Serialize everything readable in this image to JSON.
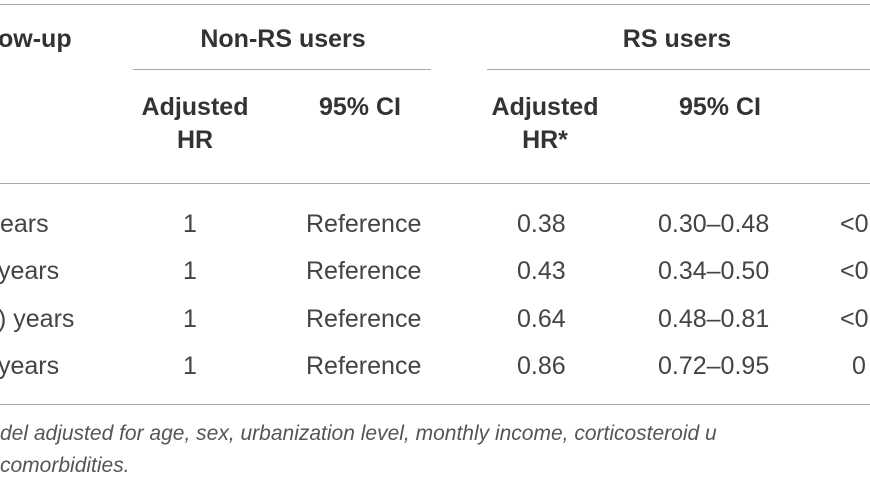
{
  "table": {
    "header_group": {
      "followup": "ow-up",
      "non_rs": "Non-RS users",
      "rs": "RS users"
    },
    "subheaders": {
      "non_rs_hr_line1": "Adjusted",
      "non_rs_hr_line2": "HR",
      "non_rs_ci": "95% CI",
      "rs_hr_line1": "Adjusted",
      "rs_hr_line2": "HR*",
      "rs_ci": "95% CI"
    },
    "rows": [
      {
        "followup": "ears",
        "non_rs_hr": "1",
        "non_rs_ci": "Reference",
        "rs_hr": "0.38",
        "rs_ci": "0.30–0.48",
        "p": "<0"
      },
      {
        "followup": "years",
        "non_rs_hr": "1",
        "non_rs_ci": "Reference",
        "rs_hr": "0.43",
        "rs_ci": "0.34–0.50",
        "p": "<0"
      },
      {
        "followup": ") years",
        "non_rs_hr": "1",
        "non_rs_ci": "Reference",
        "rs_hr": "0.64",
        "rs_ci": "0.48–0.81",
        "p": "<0"
      },
      {
        "followup": " years",
        "non_rs_hr": "1",
        "non_rs_ci": "Reference",
        "rs_hr": "0.86",
        "rs_ci": "0.72–0.95",
        "p": "0"
      }
    ],
    "footnote_line1": "del adjusted for age, sex, urbanization level, monthly income, corticosteroid u",
    "footnote_line2": "comorbidities."
  }
}
